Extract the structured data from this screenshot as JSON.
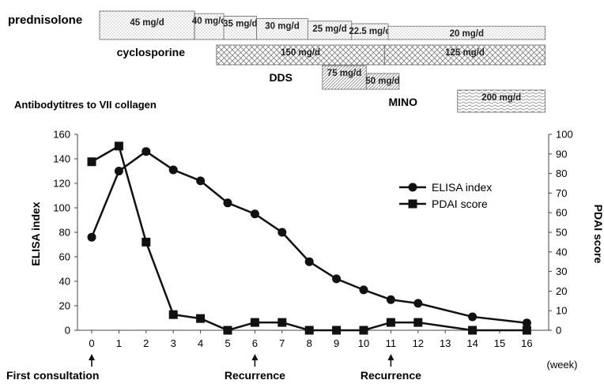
{
  "treatment_timeline": {
    "drugs": [
      {
        "name": "prednisolone",
        "pattern": "dots",
        "doses": [
          {
            "label": "45 mg/d",
            "start_week": 0.0,
            "end_week": 2.6
          },
          {
            "label": "40 mg/d",
            "start_week": 2.6,
            "end_week": 3.4
          },
          {
            "label": "35 mg/d",
            "start_week": 3.4,
            "end_week": 4.3
          },
          {
            "label": "30 mg/d",
            "start_week": 4.3,
            "end_week": 5.7
          },
          {
            "label": "25 mg/d",
            "start_week": 5.7,
            "end_week": 6.9
          },
          {
            "label": "22.5 mg/d",
            "start_week": 6.9,
            "end_week": 7.9
          },
          {
            "label": "20 mg/d",
            "start_week": 7.9,
            "end_week": 12.2
          }
        ]
      },
      {
        "name": "cyclosporine",
        "pattern": "crosshatch",
        "doses": [
          {
            "label": "150 mg/d",
            "start_week": 3.2,
            "end_week": 7.8
          },
          {
            "label": "125 mg/d",
            "start_week": 7.8,
            "end_week": 12.2
          }
        ]
      },
      {
        "name": "DDS",
        "pattern": "diagonal",
        "doses": [
          {
            "label": "75 mg/d",
            "start_week": 6.1,
            "end_week": 7.3
          },
          {
            "label": "50 mg/d",
            "start_week": 7.3,
            "end_week": 8.2
          }
        ]
      },
      {
        "name": "MINO",
        "pattern": "wave",
        "doses": [
          {
            "label": "200 mg/d",
            "start_week": 9.8,
            "end_week": 12.2
          }
        ]
      }
    ],
    "section_label": "Antibodytitres to VII  collagen"
  },
  "chart_data": {
    "type": "line",
    "x_categories": [
      "0",
      "1",
      "2",
      "3",
      "4",
      "5",
      "6",
      "7",
      "8",
      "9",
      "10",
      "11",
      "12",
      "13",
      "14",
      "15",
      "16"
    ],
    "x_unit": "(week)",
    "ylabel_left": "ELISA index",
    "ylabel_right": "PDAI score",
    "ylim_left": [
      0,
      160
    ],
    "yticks_left": [
      0,
      20,
      40,
      60,
      80,
      100,
      120,
      140,
      160
    ],
    "ylim_right": [
      0,
      100
    ],
    "yticks_right": [
      0,
      10,
      20,
      30,
      40,
      50,
      60,
      70,
      80,
      90,
      100
    ],
    "legend_position": "right",
    "series": [
      {
        "name": "ELISA index",
        "axis": "left",
        "marker": "circle",
        "x": [
          0,
          1,
          2,
          3,
          4,
          5,
          6,
          7,
          8,
          9,
          10,
          11,
          12,
          14,
          16
        ],
        "values": [
          76,
          130,
          146,
          131,
          122,
          104,
          95,
          80,
          56,
          42,
          33,
          25,
          22,
          11,
          6
        ]
      },
      {
        "name": "PDAI score",
        "axis": "right",
        "marker": "square",
        "x": [
          0,
          1,
          2,
          3,
          4,
          5,
          6,
          7,
          8,
          9,
          10,
          11,
          12,
          14,
          16
        ],
        "values": [
          86,
          94,
          45,
          8,
          6,
          0,
          4,
          4,
          0,
          0,
          0,
          4,
          4,
          0,
          0
        ]
      }
    ],
    "annotations": [
      {
        "text": "First consultation",
        "x": 0
      },
      {
        "text": "Recurrence",
        "x": 6
      },
      {
        "text": "Recurrence",
        "x": 11
      }
    ]
  }
}
